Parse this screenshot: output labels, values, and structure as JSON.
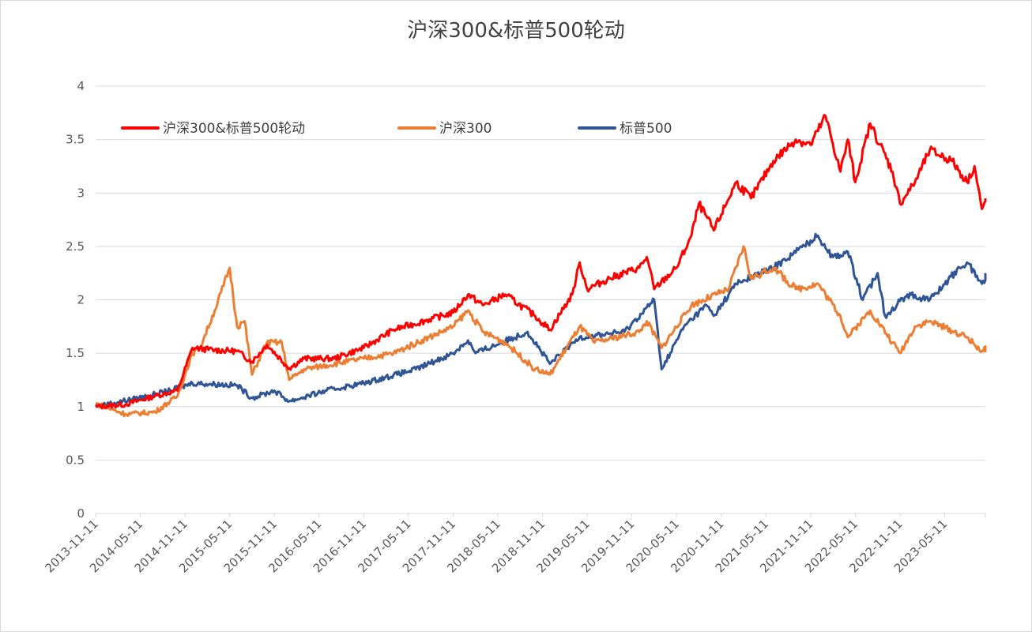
{
  "chart_data": {
    "type": "line",
    "title": "沪深300&标普500轮动",
    "xlabel": "",
    "ylabel": "",
    "ylim": [
      0,
      4
    ],
    "yticks": [
      "0",
      "0.5",
      "1",
      "1.5",
      "2",
      "2.5",
      "3",
      "3.5",
      "4"
    ],
    "xlim": [
      "2013-11-11",
      "2023-10-25"
    ],
    "xticks": [
      "2013-11-11",
      "2014-05-11",
      "2014-11-11",
      "2015-05-11",
      "2015-11-11",
      "2016-05-11",
      "2016-11-11",
      "2017-05-11",
      "2017-11-11",
      "2018-05-11",
      "2018-11-11",
      "2019-05-11",
      "2019-11-11",
      "2020-05-11",
      "2020-11-11",
      "2021-05-11",
      "2021-11-11",
      "2022-05-11",
      "2022-11-11",
      "2023-05-11"
    ],
    "grid": true,
    "legend_position": "top",
    "series": [
      {
        "name": "沪深300&标普500轮动",
        "color": "#ff0000",
        "points": [
          [
            "2013-11",
            1.0
          ],
          [
            "2014-03",
            1.02
          ],
          [
            "2014-07",
            1.1
          ],
          [
            "2014-10",
            1.15
          ],
          [
            "2014-12",
            1.55
          ],
          [
            "2015-03",
            1.53
          ],
          [
            "2015-06",
            1.52
          ],
          [
            "2015-08",
            1.42
          ],
          [
            "2015-10",
            1.58
          ],
          [
            "2016-01",
            1.36
          ],
          [
            "2016-03",
            1.45
          ],
          [
            "2016-07",
            1.45
          ],
          [
            "2016-11",
            1.55
          ],
          [
            "2017-03",
            1.72
          ],
          [
            "2017-11",
            1.88
          ],
          [
            "2018-01",
            2.05
          ],
          [
            "2018-03",
            1.95
          ],
          [
            "2018-06",
            2.05
          ],
          [
            "2018-10",
            1.85
          ],
          [
            "2018-12",
            1.72
          ],
          [
            "2019-03",
            2.05
          ],
          [
            "2019-04",
            2.35
          ],
          [
            "2019-05",
            2.1
          ],
          [
            "2019-08",
            2.2
          ],
          [
            "2019-12",
            2.3
          ],
          [
            "2020-01",
            2.4
          ],
          [
            "2020-02",
            2.1
          ],
          [
            "2020-05",
            2.3
          ],
          [
            "2020-07",
            2.6
          ],
          [
            "2020-08",
            2.9
          ],
          [
            "2020-10",
            2.65
          ],
          [
            "2021-01",
            3.1
          ],
          [
            "2021-03",
            2.95
          ],
          [
            "2021-06",
            3.3
          ],
          [
            "2021-09",
            3.5
          ],
          [
            "2021-11",
            3.45
          ],
          [
            "2022-01",
            3.72
          ],
          [
            "2022-03",
            3.2
          ],
          [
            "2022-04",
            3.5
          ],
          [
            "2022-05",
            3.1
          ],
          [
            "2022-07",
            3.65
          ],
          [
            "2022-10",
            3.2
          ],
          [
            "2022-11",
            2.9
          ],
          [
            "2023-01",
            3.1
          ],
          [
            "2023-03",
            3.4
          ],
          [
            "2023-06",
            3.3
          ],
          [
            "2023-08",
            3.1
          ],
          [
            "2023-09",
            3.25
          ],
          [
            "2023-10",
            2.85
          ],
          [
            "2023-11",
            2.95
          ]
        ]
      },
      {
        "name": "沪深300",
        "color": "#ed7d31",
        "points": [
          [
            "2013-11",
            1.03
          ],
          [
            "2014-03",
            0.93
          ],
          [
            "2014-07",
            0.95
          ],
          [
            "2014-10",
            1.1
          ],
          [
            "2014-12",
            1.5
          ],
          [
            "2015-01",
            1.55
          ],
          [
            "2015-03",
            1.9
          ],
          [
            "2015-05",
            2.3
          ],
          [
            "2015-06",
            1.75
          ],
          [
            "2015-07",
            1.8
          ],
          [
            "2015-08",
            1.3
          ],
          [
            "2015-10",
            1.6
          ],
          [
            "2015-12",
            1.6
          ],
          [
            "2016-01",
            1.25
          ],
          [
            "2016-03",
            1.35
          ],
          [
            "2016-11",
            1.45
          ],
          [
            "2017-03",
            1.5
          ],
          [
            "2017-11",
            1.75
          ],
          [
            "2018-01",
            1.9
          ],
          [
            "2018-03",
            1.7
          ],
          [
            "2018-06",
            1.6
          ],
          [
            "2018-10",
            1.35
          ],
          [
            "2018-12",
            1.3
          ],
          [
            "2019-04",
            1.75
          ],
          [
            "2019-06",
            1.6
          ],
          [
            "2019-12",
            1.7
          ],
          [
            "2020-01",
            1.8
          ],
          [
            "2020-03",
            1.55
          ],
          [
            "2020-07",
            1.95
          ],
          [
            "2020-12",
            2.1
          ],
          [
            "2021-02",
            2.5
          ],
          [
            "2021-03",
            2.2
          ],
          [
            "2021-06",
            2.3
          ],
          [
            "2021-09",
            2.1
          ],
          [
            "2021-12",
            2.15
          ],
          [
            "2022-03",
            1.85
          ],
          [
            "2022-04",
            1.65
          ],
          [
            "2022-07",
            1.9
          ],
          [
            "2022-10",
            1.6
          ],
          [
            "2022-11",
            1.5
          ],
          [
            "2023-01",
            1.75
          ],
          [
            "2023-03",
            1.8
          ],
          [
            "2023-08",
            1.65
          ],
          [
            "2023-10",
            1.52
          ],
          [
            "2023-11",
            1.55
          ]
        ]
      },
      {
        "name": "标普500",
        "color": "#2f5597",
        "points": [
          [
            "2013-11",
            1.0
          ],
          [
            "2014-06",
            1.1
          ],
          [
            "2014-09",
            1.15
          ],
          [
            "2014-12",
            1.22
          ],
          [
            "2015-06",
            1.2
          ],
          [
            "2015-08",
            1.08
          ],
          [
            "2015-11",
            1.15
          ],
          [
            "2016-01",
            1.05
          ],
          [
            "2016-06",
            1.15
          ],
          [
            "2016-11",
            1.22
          ],
          [
            "2017-06",
            1.35
          ],
          [
            "2017-11",
            1.5
          ],
          [
            "2018-01",
            1.62
          ],
          [
            "2018-02",
            1.5
          ],
          [
            "2018-09",
            1.7
          ],
          [
            "2018-12",
            1.4
          ],
          [
            "2019-04",
            1.65
          ],
          [
            "2019-10",
            1.7
          ],
          [
            "2020-02",
            2.0
          ],
          [
            "2020-03",
            1.35
          ],
          [
            "2020-06",
            1.75
          ],
          [
            "2020-09",
            1.95
          ],
          [
            "2020-10",
            1.85
          ],
          [
            "2021-01",
            2.15
          ],
          [
            "2021-06",
            2.3
          ],
          [
            "2021-12",
            2.6
          ],
          [
            "2022-02",
            2.4
          ],
          [
            "2022-04",
            2.45
          ],
          [
            "2022-06",
            2.0
          ],
          [
            "2022-08",
            2.25
          ],
          [
            "2022-09",
            1.85
          ],
          [
            "2022-12",
            2.05
          ],
          [
            "2023-03",
            2.0
          ],
          [
            "2023-07",
            2.3
          ],
          [
            "2023-08",
            2.35
          ],
          [
            "2023-10",
            2.15
          ],
          [
            "2023-11",
            2.25
          ]
        ]
      }
    ]
  }
}
